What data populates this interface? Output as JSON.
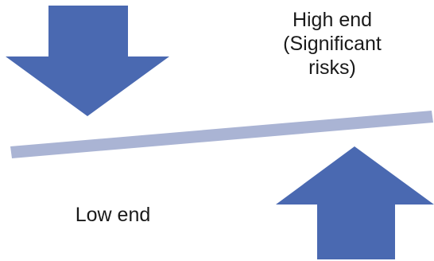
{
  "labels": {
    "high_end": [
      "High end",
      "(Significant",
      "risks)"
    ],
    "low_end": "Low end"
  },
  "colors": {
    "arrow": "#4a69b1",
    "seesaw_bar": "#aab4d4",
    "text": "#1a1a1a"
  },
  "shapes": {
    "down_arrow": "downward-block-arrow",
    "up_arrow": "upward-block-arrow",
    "bar": "tilted-seesaw-bar"
  }
}
